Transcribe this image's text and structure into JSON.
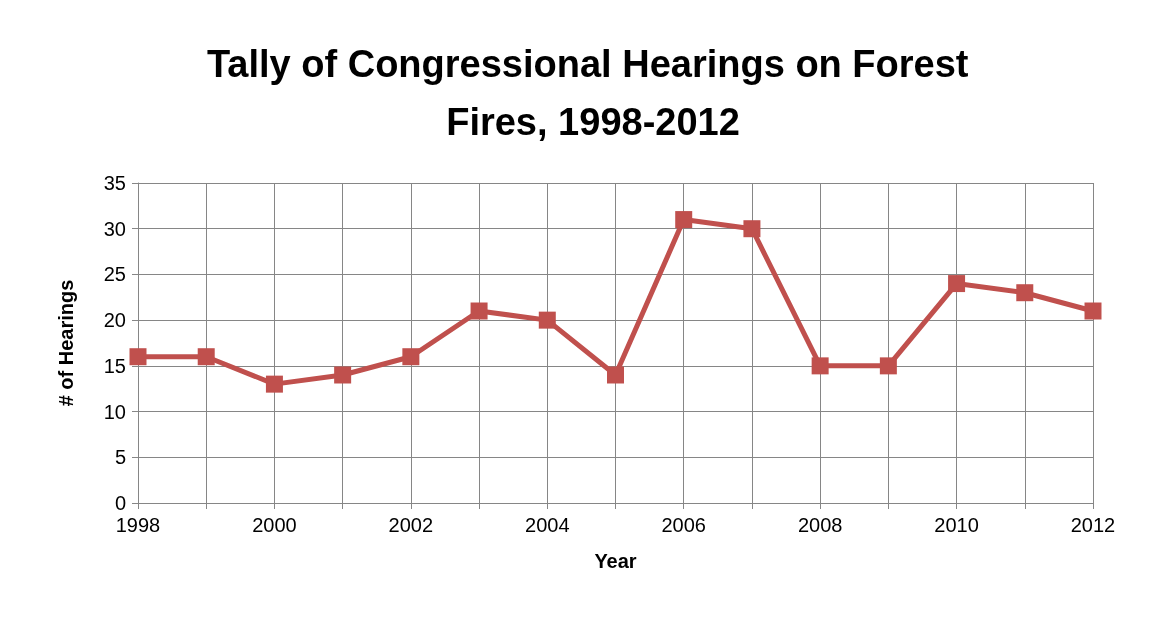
{
  "chart_data": {
    "type": "line",
    "title": "Tally of Congressional Hearings on Forest Fires, 1998-2012",
    "xlabel": "Year",
    "ylabel": "# of Hearings",
    "x": [
      1998,
      1999,
      2000,
      2001,
      2002,
      2003,
      2004,
      2005,
      2006,
      2007,
      2008,
      2009,
      2010,
      2011,
      2012
    ],
    "series": [
      {
        "color": "#c0504d",
        "values": [
          16,
          16,
          13,
          14,
          16,
          21,
          20,
          14,
          31,
          30,
          15,
          15,
          24,
          23,
          21
        ]
      }
    ],
    "xlim": [
      1998,
      2012
    ],
    "xticks": [
      1998,
      {
        "value": 1999,
        "label": null
      },
      2000,
      {
        "value": 2001,
        "label": null
      },
      2002,
      {
        "value": 2003,
        "label": null
      },
      2004,
      {
        "value": 2005,
        "label": null
      },
      2006,
      {
        "value": 2007,
        "label": null
      },
      2008,
      {
        "value": 2009,
        "label": null
      },
      2010,
      {
        "value": 2011,
        "label": null
      },
      2012
    ],
    "ylim": [
      0,
      35
    ],
    "yticks": [
      0,
      5,
      10,
      15,
      20,
      25,
      30,
      35
    ],
    "grid": true,
    "marker": "square",
    "line_style": "solid"
  }
}
